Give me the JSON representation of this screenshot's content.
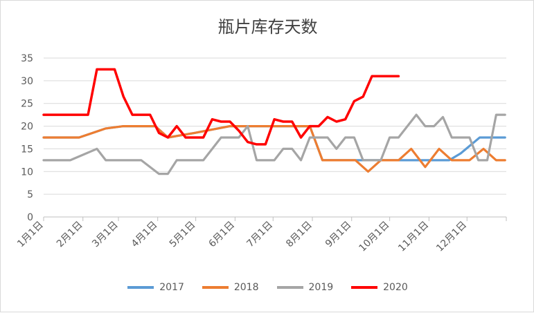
{
  "chart_data": {
    "type": "line",
    "title": "瓶片库存天数",
    "xlabel": "",
    "ylabel": "",
    "ylim": [
      0,
      35
    ],
    "yticks": [
      0,
      5,
      10,
      15,
      20,
      25,
      30,
      35
    ],
    "x_tick_labels": [
      "1月1日",
      "2月1日",
      "3月1日",
      "4月1日",
      "5月1日",
      "6月1日",
      "7月1日",
      "8月1日",
      "9月1日",
      "10月1日",
      "11月1日",
      "12月1日"
    ],
    "x_tick_days": [
      0,
      31,
      59,
      90,
      120,
      151,
      181,
      212,
      243,
      273,
      304,
      334
    ],
    "grid": "horizontal",
    "legend": "bottom",
    "series": [
      {
        "name": "2017",
        "color": "#5b9bd5",
        "points": [
          [
            0,
            17.5
          ],
          [
            28,
            17.5
          ],
          [
            49,
            19.5
          ],
          [
            63,
            20
          ],
          [
            88,
            20
          ],
          [
            98,
            17.5
          ],
          [
            119,
            18.5
          ],
          [
            147,
            20
          ],
          [
            200,
            20
          ],
          [
            210,
            20
          ],
          [
            220,
            12.5
          ],
          [
            238,
            12.5
          ],
          [
            256,
            12.5
          ],
          [
            273,
            12.5
          ],
          [
            294,
            12.5
          ],
          [
            320,
            12.5
          ],
          [
            329,
            14
          ],
          [
            344,
            17.5
          ],
          [
            364,
            17.5
          ]
        ]
      },
      {
        "name": "2018",
        "color": "#ed7d31",
        "points": [
          [
            0,
            17.5
          ],
          [
            28,
            17.5
          ],
          [
            49,
            19.5
          ],
          [
            63,
            20
          ],
          [
            88,
            20
          ],
          [
            98,
            17.5
          ],
          [
            119,
            18.5
          ],
          [
            147,
            20
          ],
          [
            200,
            20
          ],
          [
            210,
            20
          ],
          [
            220,
            12.5
          ],
          [
            238,
            12.5
          ],
          [
            246,
            12.5
          ],
          [
            256,
            10
          ],
          [
            266,
            12.5
          ],
          [
            280,
            12.5
          ],
          [
            290,
            15
          ],
          [
            301,
            11
          ],
          [
            312,
            15
          ],
          [
            322,
            12.5
          ],
          [
            336,
            12.5
          ],
          [
            347,
            15
          ],
          [
            357,
            12.5
          ],
          [
            364,
            12.5
          ]
        ]
      },
      {
        "name": "2019",
        "color": "#a5a5a5",
        "points": [
          [
            0,
            12.5
          ],
          [
            21,
            12.5
          ],
          [
            42,
            15
          ],
          [
            49,
            12.5
          ],
          [
            77,
            12.5
          ],
          [
            91,
            9.5
          ],
          [
            98,
            9.5
          ],
          [
            105,
            12.5
          ],
          [
            126,
            12.5
          ],
          [
            140,
            17.5
          ],
          [
            154,
            17.5
          ],
          [
            161,
            20
          ],
          [
            168,
            12.5
          ],
          [
            182,
            12.5
          ],
          [
            189,
            15
          ],
          [
            196,
            15
          ],
          [
            203,
            12.5
          ],
          [
            210,
            17.5
          ],
          [
            224,
            17.5
          ],
          [
            231,
            15
          ],
          [
            238,
            17.5
          ],
          [
            245,
            17.5
          ],
          [
            252,
            12.5
          ],
          [
            266,
            12.5
          ],
          [
            273,
            17.5
          ],
          [
            280,
            17.5
          ],
          [
            294,
            22.5
          ],
          [
            301,
            20
          ],
          [
            308,
            20
          ],
          [
            315,
            22
          ],
          [
            322,
            17.5
          ],
          [
            336,
            17.5
          ],
          [
            343,
            12.5
          ],
          [
            350,
            12.5
          ],
          [
            357,
            22.5
          ],
          [
            364,
            22.5
          ]
        ]
      },
      {
        "name": "2020",
        "color": "#ff0000",
        "points": [
          [
            0,
            22.5
          ],
          [
            35,
            22.5
          ],
          [
            42,
            32.5
          ],
          [
            56,
            32.5
          ],
          [
            63,
            26.5
          ],
          [
            70,
            22.5
          ],
          [
            84,
            22.5
          ],
          [
            91,
            18.5
          ],
          [
            98,
            17.5
          ],
          [
            105,
            20
          ],
          [
            112,
            17.5
          ],
          [
            126,
            17.5
          ],
          [
            133,
            21.5
          ],
          [
            140,
            21
          ],
          [
            147,
            21
          ],
          [
            154,
            19
          ],
          [
            161,
            16.5
          ],
          [
            168,
            16
          ],
          [
            175,
            16
          ],
          [
            182,
            21.5
          ],
          [
            189,
            21
          ],
          [
            196,
            21
          ],
          [
            203,
            17.5
          ],
          [
            210,
            20
          ],
          [
            217,
            20
          ],
          [
            224,
            22
          ],
          [
            231,
            21
          ],
          [
            238,
            21.5
          ],
          [
            245,
            25.5
          ],
          [
            252,
            26.5
          ],
          [
            259,
            31
          ],
          [
            266,
            31
          ],
          [
            280,
            31
          ]
        ]
      }
    ]
  }
}
